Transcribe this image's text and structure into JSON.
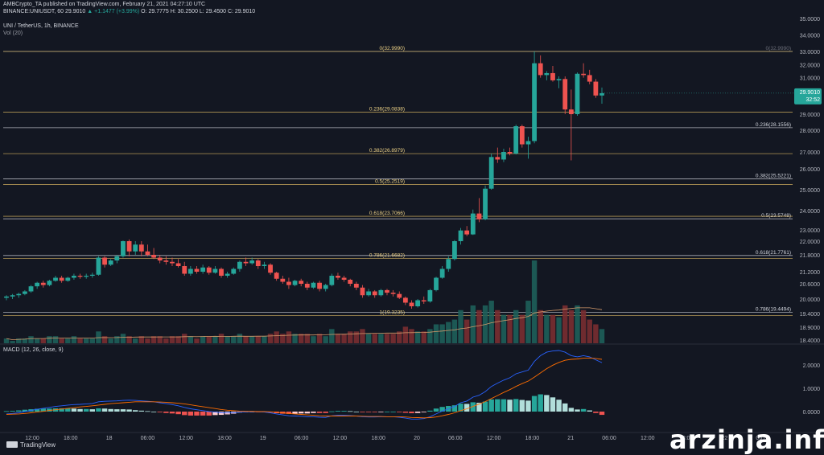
{
  "header": {
    "publisher": "AMBCrypto_TA published on TradingView.com, February 21, 2021 04:27:10 UTC",
    "quote_prefix": "BINANCE:UNIUSDT, 60  29.9010  ",
    "change": "▲ +1.1477 (+3.99%)",
    "ohlc": "  O: 29.7775  H: 30.2500  L: 29.4500  C: 29.9010",
    "symbol_title": "UNI / TetherUS, 1h, BINANCE",
    "volume_label": "Vol (20)",
    "macd_label": "MACD (12, 26, close, 9)"
  },
  "footer": {
    "brand": "TradingView"
  },
  "watermark": "arzinja.info",
  "price_badge": {
    "price": "29.9010",
    "countdown": "32:52"
  },
  "colors": {
    "up": "#26a69a",
    "down": "#ef5350",
    "fib": "#c5a55a",
    "fib_white": "#d1d4dc",
    "bg": "#131722",
    "macd": "#2962ff",
    "signal": "#ff6d00"
  },
  "chart_data": [
    {
      "type": "candlestick",
      "title": "UNI / TetherUS, 1h, BINANCE",
      "ylim": [
        18.4,
        35.0
      ],
      "price_axis_ticks": [
        "35.0000",
        "34.0000",
        "33.0000",
        "32.0000",
        "31.0000",
        "30.0000",
        "29.0000",
        "28.0000",
        "27.0000",
        "26.0000",
        "25.0000",
        "24.0000",
        "23.0000",
        "22.0000",
        "21.8000",
        "21.2000",
        "20.6000",
        "20.0000",
        "19.4000",
        "18.9000",
        "18.4000"
      ],
      "time_axis_ticks": [
        "12:00",
        "18:00",
        "18",
        "06:00",
        "12:00",
        "18:00",
        "19",
        "06:00",
        "12:00",
        "18:00",
        "20",
        "06:00",
        "12:00",
        "18:00",
        "21",
        "06:00",
        "12:00",
        "18:00",
        "22",
        "06:00"
      ],
      "candles": [
        [
          20.05,
          20.15,
          19.95,
          20.1
        ],
        [
          20.1,
          20.2,
          20.0,
          20.15
        ],
        [
          20.15,
          20.25,
          20.05,
          20.2
        ],
        [
          20.2,
          20.35,
          20.15,
          20.3
        ],
        [
          20.3,
          20.55,
          20.25,
          20.5
        ],
        [
          20.5,
          20.7,
          20.4,
          20.65
        ],
        [
          20.65,
          20.75,
          20.45,
          20.55
        ],
        [
          20.55,
          20.8,
          20.5,
          20.75
        ],
        [
          20.75,
          21.0,
          20.7,
          20.9
        ],
        [
          20.9,
          21.0,
          20.65,
          20.75
        ],
        [
          20.75,
          20.95,
          20.7,
          20.9
        ],
        [
          20.9,
          21.1,
          20.8,
          21.0
        ],
        [
          21.0,
          21.1,
          20.85,
          20.95
        ],
        [
          20.95,
          21.1,
          20.85,
          21.0
        ],
        [
          21.0,
          21.15,
          20.9,
          21.05
        ],
        [
          21.05,
          21.75,
          21.0,
          21.7
        ],
        [
          21.7,
          21.75,
          21.35,
          21.45
        ],
        [
          21.45,
          21.65,
          21.4,
          21.6
        ],
        [
          21.6,
          21.8,
          21.5,
          21.75
        ],
        [
          21.75,
          22.05,
          21.7,
          22.0
        ],
        [
          22.0,
          22.15,
          21.75,
          21.85
        ],
        [
          21.85,
          22.0,
          21.8,
          21.95
        ],
        [
          21.95,
          22.0,
          21.75,
          21.85
        ],
        [
          21.85,
          21.95,
          21.75,
          21.8
        ],
        [
          21.8,
          21.9,
          21.65,
          21.7
        ],
        [
          21.7,
          21.8,
          21.5,
          21.6
        ],
        [
          21.6,
          21.75,
          21.45,
          21.55
        ],
        [
          21.55,
          21.7,
          21.4,
          21.5
        ],
        [
          21.5,
          21.65,
          21.35,
          21.4
        ],
        [
          21.4,
          21.55,
          21.0,
          21.1
        ],
        [
          21.1,
          21.4,
          21.0,
          21.3
        ],
        [
          21.3,
          21.4,
          21.1,
          21.2
        ],
        [
          21.2,
          21.45,
          21.1,
          21.35
        ],
        [
          21.35,
          21.4,
          21.05,
          21.15
        ],
        [
          21.15,
          21.4,
          21.1,
          21.3
        ],
        [
          21.3,
          21.35,
          20.9,
          21.0
        ],
        [
          21.0,
          21.2,
          20.9,
          21.1
        ],
        [
          21.1,
          21.35,
          21.05,
          21.3
        ],
        [
          21.3,
          21.6,
          21.2,
          21.55
        ],
        [
          21.55,
          21.7,
          21.4,
          21.5
        ],
        [
          21.5,
          21.7,
          21.45,
          21.6
        ],
        [
          21.6,
          21.65,
          21.3,
          21.4
        ],
        [
          21.4,
          21.55,
          21.3,
          21.45
        ],
        [
          21.45,
          21.5,
          21.05,
          21.15
        ],
        [
          21.15,
          21.2,
          20.75,
          20.85
        ],
        [
          20.85,
          21.0,
          20.6,
          20.7
        ],
        [
          20.7,
          20.9,
          20.4,
          20.55
        ],
        [
          20.55,
          20.8,
          20.5,
          20.75
        ],
        [
          20.75,
          20.85,
          20.5,
          20.6
        ],
        [
          20.6,
          20.7,
          20.35,
          20.45
        ],
        [
          20.45,
          20.7,
          20.4,
          20.65
        ],
        [
          20.65,
          20.75,
          20.3,
          20.4
        ],
        [
          20.4,
          20.6,
          20.3,
          20.55
        ],
        [
          20.55,
          21.1,
          20.5,
          21.0
        ],
        [
          21.0,
          21.15,
          20.8,
          20.9
        ],
        [
          20.9,
          21.0,
          20.7,
          20.8
        ],
        [
          20.8,
          20.85,
          20.5,
          20.6
        ],
        [
          20.6,
          20.7,
          20.35,
          20.45
        ],
        [
          20.45,
          20.55,
          20.05,
          20.15
        ],
        [
          20.15,
          20.4,
          20.1,
          20.3
        ],
        [
          20.3,
          20.35,
          20.05,
          20.15
        ],
        [
          20.15,
          20.4,
          20.1,
          20.35
        ],
        [
          20.35,
          20.4,
          20.15,
          20.25
        ],
        [
          20.25,
          20.35,
          20.1,
          20.2
        ],
        [
          20.2,
          20.3,
          20.0,
          20.05
        ],
        [
          20.05,
          20.1,
          19.75,
          19.85
        ],
        [
          19.85,
          19.95,
          19.6,
          19.7
        ],
        [
          19.7,
          20.0,
          19.65,
          19.95
        ],
        [
          19.95,
          20.1,
          19.8,
          19.9
        ],
        [
          19.9,
          20.4,
          19.85,
          20.35
        ],
        [
          20.35,
          20.95,
          20.3,
          20.9
        ],
        [
          20.9,
          21.4,
          20.85,
          21.3
        ],
        [
          21.3,
          21.75,
          21.2,
          21.65
        ],
        [
          21.65,
          22.1,
          21.6,
          22.0
        ],
        [
          22.0,
          23.1,
          21.95,
          22.95
        ],
        [
          22.95,
          23.2,
          22.45,
          22.6
        ],
        [
          22.6,
          24.05,
          22.55,
          23.85
        ],
        [
          23.85,
          24.6,
          23.4,
          23.55
        ],
        [
          23.55,
          25.2,
          23.5,
          25.05
        ],
        [
          25.05,
          26.9,
          25.0,
          26.7
        ],
        [
          26.7,
          27.2,
          26.35,
          26.55
        ],
        [
          26.55,
          27.15,
          26.4,
          27.0
        ],
        [
          27.0,
          27.2,
          26.8,
          26.9
        ],
        [
          26.9,
          28.35,
          26.85,
          28.25
        ],
        [
          28.25,
          28.35,
          27.2,
          27.35
        ],
        [
          27.35,
          27.7,
          26.6,
          27.5
        ],
        [
          27.5,
          33.0,
          27.4,
          32.1
        ],
        [
          32.1,
          32.7,
          31.0,
          31.2
        ],
        [
          31.2,
          31.5,
          30.8,
          31.35
        ],
        [
          31.35,
          31.9,
          30.7,
          30.8
        ],
        [
          30.8,
          31.1,
          30.2,
          30.9
        ],
        [
          30.9,
          31.1,
          29.0,
          29.2
        ],
        [
          29.2,
          30.1,
          26.5,
          29.0
        ],
        [
          29.0,
          31.4,
          28.9,
          31.3
        ],
        [
          31.3,
          32.1,
          31.0,
          31.2
        ],
        [
          31.2,
          31.6,
          30.5,
          30.7
        ],
        [
          30.7,
          30.9,
          29.7,
          29.8
        ],
        [
          29.8,
          30.25,
          29.45,
          29.9
        ]
      ],
      "volume": [
        2,
        1,
        2,
        2,
        3,
        2,
        2,
        3,
        3,
        2,
        2,
        3,
        2,
        2,
        2,
        5,
        3,
        2,
        3,
        4,
        3,
        2,
        3,
        2,
        3,
        3,
        2,
        3,
        3,
        4,
        3,
        2,
        3,
        3,
        3,
        4,
        3,
        3,
        4,
        3,
        3,
        3,
        3,
        4,
        5,
        4,
        5,
        4,
        4,
        4,
        3,
        4,
        3,
        6,
        4,
        4,
        5,
        5,
        6,
        4,
        4,
        4,
        4,
        4,
        5,
        7,
        6,
        5,
        5,
        6,
        8,
        8,
        9,
        10,
        14,
        10,
        16,
        14,
        16,
        18,
        14,
        12,
        12,
        14,
        12,
        18,
        35,
        14,
        12,
        12,
        11,
        16,
        14,
        16,
        14,
        10,
        8,
        6
      ],
      "fib_levels_yellow": [
        {
          "label": "0(32.9990)",
          "value": 32.999
        },
        {
          "label": "0.236(29.0838)",
          "value": 29.0838
        },
        {
          "label": "0.382(26.8979)",
          "value": 26.8979
        },
        {
          "label": "0.5(25.2519)",
          "value": 25.2519
        },
        {
          "label": "0.618(23.7066)",
          "value": 23.7066
        },
        {
          "label": "0.786(21.6682)",
          "value": 21.6682
        },
        {
          "label": "1(19.3235)",
          "value": 19.3235
        }
      ],
      "fib_levels_white": [
        {
          "label": "0(32.9990)",
          "value": 32.999
        },
        {
          "label": "0.236(28.1556)",
          "value": 28.1556
        },
        {
          "label": "0.382(25.5221)",
          "value": 25.5221
        },
        {
          "label": "0.5(23.5748)",
          "value": 23.5748
        },
        {
          "label": "0.618(21.7761)",
          "value": 21.7761
        },
        {
          "label": "0.786(19.4494)",
          "value": 19.4494
        }
      ]
    },
    {
      "type": "macd",
      "title": "MACD (12, 26, close, 9)",
      "ylim": [
        -0.6,
        3.0
      ],
      "axis_ticks": [
        "2.0000",
        "1.0000",
        "0.0000"
      ],
      "macd": [
        -0.1,
        -0.08,
        -0.05,
        0.0,
        0.05,
        0.1,
        0.14,
        0.18,
        0.22,
        0.25,
        0.28,
        0.3,
        0.31,
        0.33,
        0.35,
        0.42,
        0.44,
        0.45,
        0.46,
        0.48,
        0.49,
        0.48,
        0.46,
        0.44,
        0.42,
        0.38,
        0.34,
        0.3,
        0.25,
        0.18,
        0.12,
        0.08,
        0.04,
        0.0,
        -0.02,
        -0.05,
        -0.06,
        -0.05,
        -0.02,
        -0.01,
        0.0,
        -0.01,
        -0.02,
        -0.05,
        -0.1,
        -0.14,
        -0.18,
        -0.19,
        -0.2,
        -0.22,
        -0.22,
        -0.24,
        -0.25,
        -0.18,
        -0.16,
        -0.16,
        -0.17,
        -0.19,
        -0.22,
        -0.23,
        -0.23,
        -0.22,
        -0.22,
        -0.22,
        -0.24,
        -0.28,
        -0.32,
        -0.32,
        -0.3,
        -0.22,
        -0.1,
        0.02,
        0.12,
        0.22,
        0.38,
        0.45,
        0.62,
        0.7,
        0.86,
        1.08,
        1.22,
        1.35,
        1.45,
        1.62,
        1.7,
        1.78,
        2.15,
        2.4,
        2.55,
        2.6,
        2.62,
        2.55,
        2.4,
        2.35,
        2.4,
        2.35,
        2.22,
        2.1
      ],
      "signal": [
        -0.12,
        -0.11,
        -0.1,
        -0.08,
        -0.05,
        -0.02,
        0.01,
        0.05,
        0.08,
        0.11,
        0.14,
        0.17,
        0.2,
        0.22,
        0.25,
        0.28,
        0.31,
        0.34,
        0.36,
        0.38,
        0.4,
        0.42,
        0.42,
        0.42,
        0.42,
        0.41,
        0.4,
        0.38,
        0.36,
        0.33,
        0.29,
        0.25,
        0.21,
        0.17,
        0.13,
        0.09,
        0.06,
        0.04,
        0.02,
        0.01,
        0.01,
        0.0,
        0.0,
        -0.01,
        -0.03,
        -0.05,
        -0.08,
        -0.1,
        -0.12,
        -0.14,
        -0.16,
        -0.18,
        -0.19,
        -0.19,
        -0.19,
        -0.19,
        -0.19,
        -0.19,
        -0.2,
        -0.21,
        -0.21,
        -0.21,
        -0.22,
        -0.22,
        -0.22,
        -0.23,
        -0.25,
        -0.26,
        -0.27,
        -0.26,
        -0.23,
        -0.18,
        -0.12,
        -0.05,
        0.04,
        0.12,
        0.22,
        0.32,
        0.43,
        0.56,
        0.69,
        0.82,
        0.94,
        1.08,
        1.2,
        1.31,
        1.48,
        1.66,
        1.84,
        1.99,
        2.11,
        2.2,
        2.24,
        2.26,
        2.29,
        2.3,
        2.28,
        2.24
      ]
    }
  ]
}
